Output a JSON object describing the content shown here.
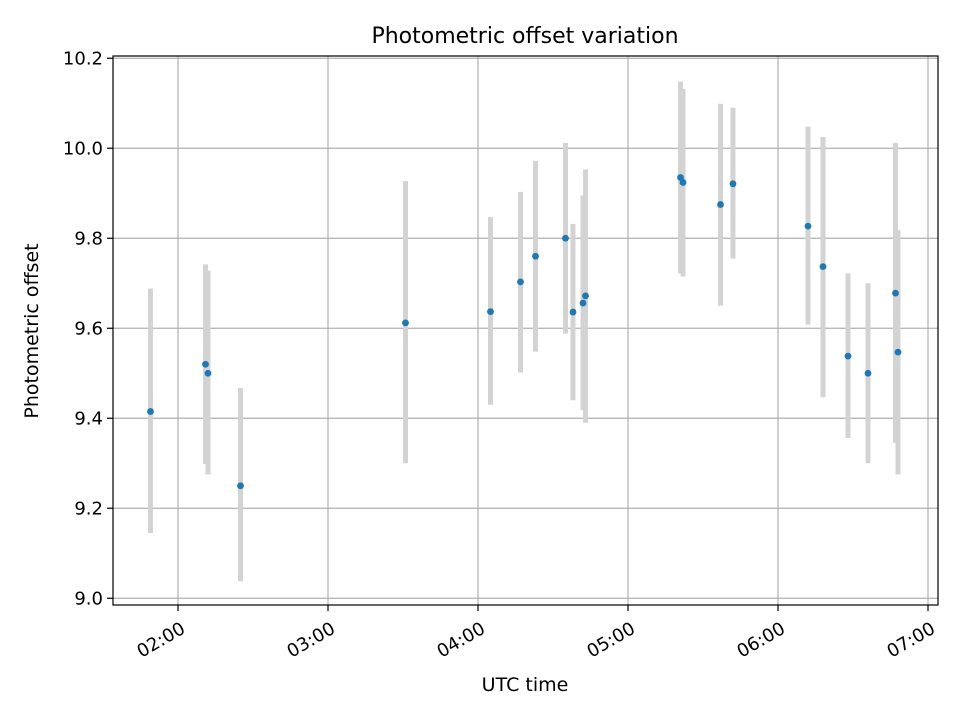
{
  "chart_data": {
    "type": "scatter",
    "title": "Photometric offset variation",
    "xlabel": "UTC time",
    "ylabel": "Photometric offset",
    "x_ticks": [
      "02:00",
      "03:00",
      "04:00",
      "05:00",
      "06:00",
      "07:00"
    ],
    "y_ticks": [
      "9.0",
      "9.2",
      "9.4",
      "9.6",
      "9.8",
      "10.0",
      "10.2"
    ],
    "xlim": [
      "01:34",
      "07:04"
    ],
    "ylim": [
      8.985,
      10.205
    ],
    "grid": true,
    "legend": "none",
    "colors": {
      "point": "#1f77b4",
      "errorbar": "#d3d3d3",
      "grid": "#b0b0b0"
    },
    "points": [
      {
        "x": "01:49",
        "y": 9.415,
        "yerr_low": 9.145,
        "yerr_high": 9.688
      },
      {
        "x": "02:11",
        "y": 9.52,
        "yerr_low": 9.298,
        "yerr_high": 9.742
      },
      {
        "x": "02:12",
        "y": 9.5,
        "yerr_low": 9.275,
        "yerr_high": 9.728
      },
      {
        "x": "02:25",
        "y": 9.25,
        "yerr_low": 9.038,
        "yerr_high": 9.467
      },
      {
        "x": "03:31",
        "y": 9.612,
        "yerr_low": 9.3,
        "yerr_high": 9.927
      },
      {
        "x": "04:05",
        "y": 9.637,
        "yerr_low": 9.43,
        "yerr_high": 9.847
      },
      {
        "x": "04:17",
        "y": 9.703,
        "yerr_low": 9.502,
        "yerr_high": 9.903
      },
      {
        "x": "04:23",
        "y": 9.76,
        "yerr_low": 9.548,
        "yerr_high": 9.972
      },
      {
        "x": "04:35",
        "y": 9.8,
        "yerr_low": 9.588,
        "yerr_high": 10.012
      },
      {
        "x": "04:38",
        "y": 9.636,
        "yerr_low": 9.44,
        "yerr_high": 9.832
      },
      {
        "x": "04:42",
        "y": 9.656,
        "yerr_low": 9.418,
        "yerr_high": 9.895
      },
      {
        "x": "04:43",
        "y": 9.672,
        "yerr_low": 9.39,
        "yerr_high": 9.953
      },
      {
        "x": "05:21",
        "y": 9.935,
        "yerr_low": 9.722,
        "yerr_high": 10.148
      },
      {
        "x": "05:22",
        "y": 9.924,
        "yerr_low": 9.715,
        "yerr_high": 10.132
      },
      {
        "x": "05:37",
        "y": 9.875,
        "yerr_low": 9.65,
        "yerr_high": 10.099
      },
      {
        "x": "05:42",
        "y": 9.921,
        "yerr_low": 9.755,
        "yerr_high": 10.09
      },
      {
        "x": "06:12",
        "y": 9.827,
        "yerr_low": 9.608,
        "yerr_high": 10.048
      },
      {
        "x": "06:18",
        "y": 9.737,
        "yerr_low": 9.447,
        "yerr_high": 10.025
      },
      {
        "x": "06:28",
        "y": 9.538,
        "yerr_low": 9.356,
        "yerr_high": 9.722
      },
      {
        "x": "06:36",
        "y": 9.5,
        "yerr_low": 9.3,
        "yerr_high": 9.7
      },
      {
        "x": "06:47",
        "y": 9.678,
        "yerr_low": 9.345,
        "yerr_high": 10.012
      },
      {
        "x": "06:48",
        "y": 9.547,
        "yerr_low": 9.275,
        "yerr_high": 9.818
      }
    ]
  }
}
